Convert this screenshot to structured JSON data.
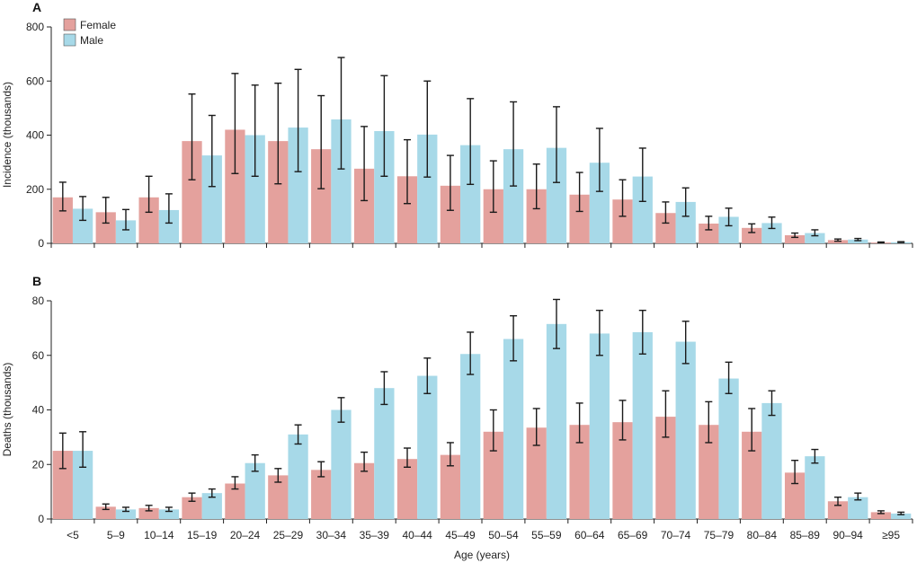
{
  "chart_data": [
    {
      "type": "bar",
      "panel_label": "A",
      "ylabel": "Incidence (thousands)",
      "xlabel": "",
      "ylim": [
        0,
        800
      ],
      "yticks": [
        0,
        200,
        400,
        600,
        800
      ],
      "categories": [
        "<5",
        "5–9",
        "10–14",
        "15–19",
        "20–24",
        "25–29",
        "30–34",
        "35–39",
        "40–44",
        "45–49",
        "50–54",
        "55–59",
        "60–64",
        "65–69",
        "70–74",
        "75–79",
        "80–84",
        "85–89",
        "90–94",
        "≥95"
      ],
      "legend": "top-left",
      "series": [
        {
          "name": "Female",
          "color": "#e4a19d",
          "values": [
            170,
            115,
            170,
            378,
            420,
            378,
            348,
            276,
            248,
            213,
            200,
            200,
            180,
            162,
            112,
            73,
            57,
            30,
            12,
            3
          ],
          "lower": [
            120,
            75,
            115,
            235,
            258,
            220,
            202,
            158,
            147,
            122,
            115,
            128,
            118,
            100,
            75,
            50,
            40,
            22,
            8,
            2
          ],
          "upper": [
            226,
            170,
            248,
            552,
            628,
            592,
            546,
            432,
            383,
            325,
            305,
            293,
            262,
            235,
            153,
            100,
            72,
            38,
            16,
            5
          ]
        },
        {
          "name": "Male",
          "color": "#a7d9e8",
          "values": [
            128,
            85,
            123,
            325,
            400,
            428,
            458,
            415,
            402,
            363,
            348,
            353,
            298,
            247,
            153,
            98,
            75,
            38,
            14,
            4
          ],
          "lower": [
            85,
            50,
            75,
            210,
            248,
            265,
            275,
            248,
            245,
            218,
            212,
            225,
            192,
            155,
            100,
            65,
            55,
            28,
            10,
            3
          ],
          "upper": [
            173,
            125,
            183,
            473,
            585,
            643,
            687,
            620,
            600,
            535,
            523,
            505,
            425,
            352,
            205,
            130,
            97,
            50,
            18,
            6
          ]
        }
      ]
    },
    {
      "type": "bar",
      "panel_label": "B",
      "ylabel": "Deaths (thousands)",
      "xlabel": "Age (years)",
      "ylim": [
        0,
        80
      ],
      "yticks": [
        0,
        20,
        40,
        60,
        80
      ],
      "categories": [
        "<5",
        "5–9",
        "10–14",
        "15–19",
        "20–24",
        "25–29",
        "30–34",
        "35–39",
        "40–44",
        "45–49",
        "50–54",
        "55–59",
        "60–64",
        "65–69",
        "70–74",
        "75–79",
        "80–84",
        "85–89",
        "90–94",
        "≥95"
      ],
      "series": [
        {
          "name": "Female",
          "color": "#e4a19d",
          "values": [
            25,
            4.5,
            4,
            8,
            13,
            16,
            18,
            20.5,
            22,
            23.5,
            32,
            33.5,
            34.5,
            35.5,
            37.5,
            34.5,
            32,
            17,
            6.5,
            2.5
          ],
          "lower": [
            18.5,
            3.5,
            3,
            6.5,
            11,
            13.5,
            15.5,
            17.5,
            19,
            19.5,
            25,
            27,
            28,
            29,
            30,
            28,
            25,
            13,
            5,
            2
          ],
          "upper": [
            31.5,
            5.5,
            5,
            9.5,
            15.5,
            18.5,
            21,
            24.5,
            26,
            28,
            40,
            40.5,
            42.5,
            43.5,
            47,
            43,
            40.5,
            21.5,
            8,
            3
          ]
        },
        {
          "name": "Male",
          "color": "#a7d9e8",
          "values": [
            25,
            3.5,
            3.5,
            9.5,
            20.5,
            31,
            40,
            48,
            52.5,
            60.5,
            66,
            71.5,
            68,
            68.5,
            65,
            51.5,
            42.5,
            23,
            8,
            2
          ],
          "lower": [
            19,
            2.8,
            2.8,
            8,
            17.5,
            27.5,
            35.5,
            42,
            46,
            53,
            58,
            62.5,
            60,
            60.5,
            57,
            46,
            38,
            20.5,
            7,
            1.6
          ],
          "upper": [
            32,
            4.3,
            4.3,
            11,
            23.5,
            34.5,
            44.5,
            54,
            59,
            68.5,
            74.5,
            80.5,
            76.5,
            76.5,
            72.5,
            57.5,
            47,
            25.5,
            9.5,
            2.5
          ]
        }
      ]
    }
  ]
}
